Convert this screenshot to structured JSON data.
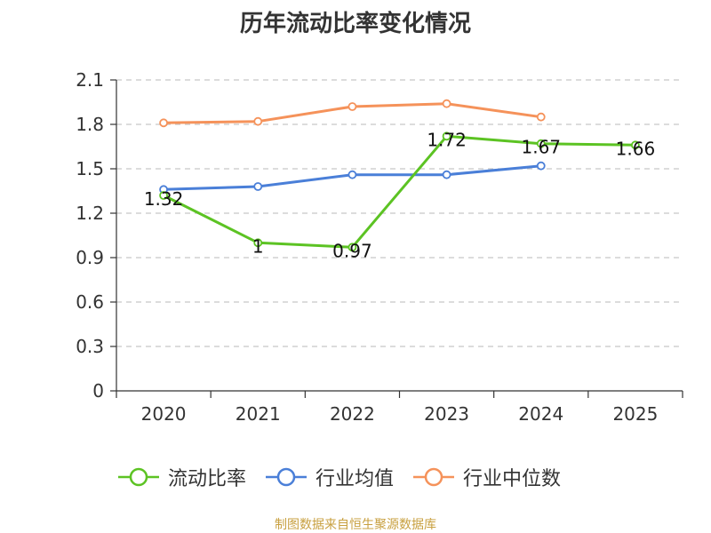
{
  "chart_data": {
    "type": "line",
    "title": "历年流动比率变化情况",
    "categories": [
      "2020",
      "2021",
      "2022",
      "2023",
      "2024",
      "2025"
    ],
    "ylim": [
      0,
      2.1
    ],
    "yticks": [
      "0",
      "0.3",
      "0.6",
      "0.9",
      "1.2",
      "1.5",
      "1.8",
      "2.1"
    ],
    "grid": true,
    "legend_position": "bottom",
    "series": [
      {
        "name": "流动比率",
        "color": "#5cc323",
        "values": [
          1.32,
          1,
          0.97,
          1.72,
          1.67,
          1.66
        ],
        "labels": [
          "1.32",
          "1",
          "0.97",
          "1.72",
          "1.67",
          "1.66"
        ]
      },
      {
        "name": "行业均值",
        "color": "#4a7fd8",
        "values": [
          1.36,
          1.38,
          1.46,
          1.46,
          1.52,
          null
        ]
      },
      {
        "name": "行业中位数",
        "color": "#f5925a",
        "values": [
          1.81,
          1.82,
          1.92,
          1.94,
          1.85,
          null
        ]
      }
    ]
  },
  "source_note": "制图数据来自恒生聚源数据库"
}
